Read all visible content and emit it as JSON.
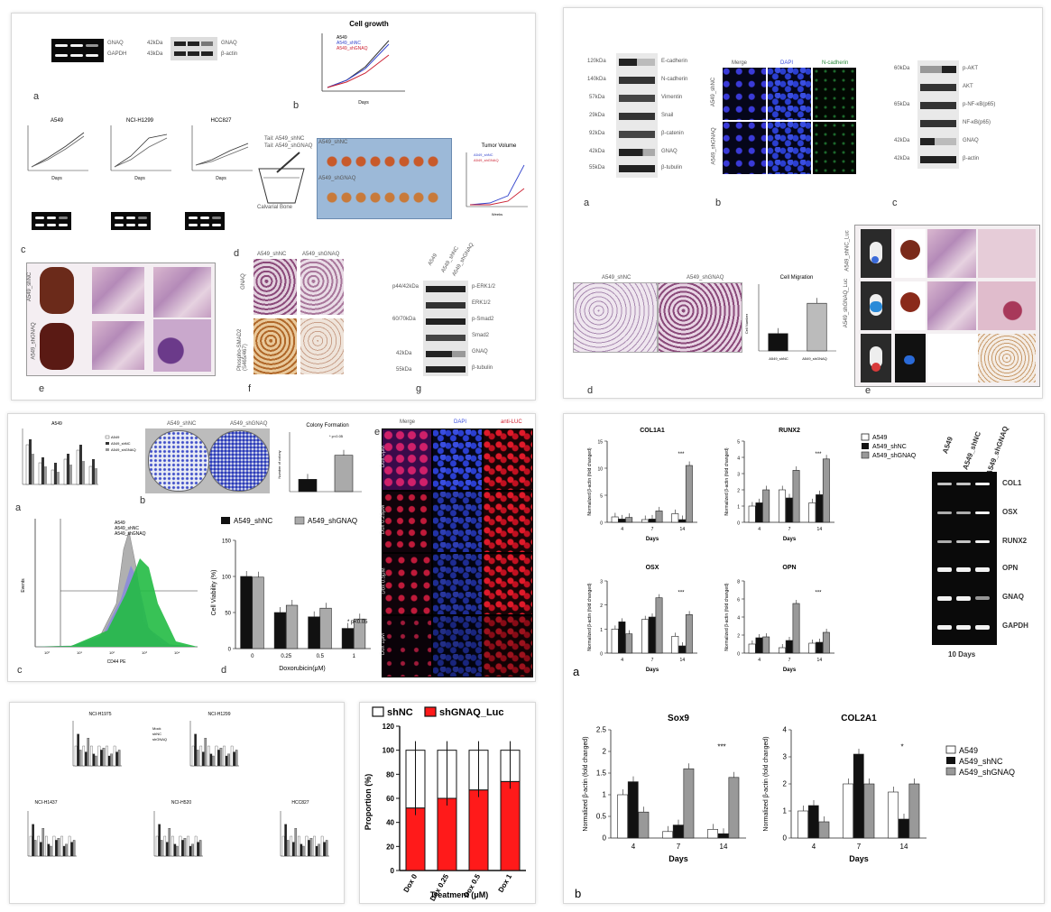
{
  "panels": {
    "p1": {
      "labels": {
        "a": "a",
        "b": "b",
        "c": "c",
        "d": "d",
        "e": "e",
        "f": "f",
        "g": "g"
      },
      "gel_right_labels": [
        "GNAQ",
        "GAPDH"
      ],
      "blot_left_labels": [
        "42kDa",
        "43kDa"
      ],
      "blot_right_labels": [
        "GNAQ",
        "β-actin"
      ],
      "cell_growth_title": "Cell growth",
      "cell_growth_legend": [
        "A549",
        "A549_shNC",
        "A549_shGNAQ"
      ],
      "cell_growth_xlabel": "Days",
      "small_chart_titles": [
        "A549",
        "NCI-H1299",
        "HCC827"
      ],
      "small_chart_xlabel": "Days",
      "injection_labels": [
        "Tail: A549_shNC",
        "Tail: A549_shGNAQ"
      ],
      "bone_label": "Calvarial Bone",
      "tumor_photo_labels": [
        "A549_shNC",
        "A549_shGNAQ"
      ],
      "tumor_volume_title": "Tumor Volume",
      "tumor_volume_legend": [
        "A549_shNC",
        "A549_shGNAQ"
      ],
      "tumor_volume_xlabel": "Weeks",
      "lung_row_labels": [
        "A549_shNC",
        "A549_shGNAQ"
      ],
      "ihc_col_labels": [
        "A549_shNC",
        "A549_shGNAQ"
      ],
      "ihc_row_labels": [
        "GNAQ",
        "Phospho-SMAD2 (S465/467)"
      ],
      "wb_left_labels": [
        "p44/42kDa",
        "",
        "60/70kDa",
        "",
        "42kDa",
        "55kDa"
      ],
      "wb_right_labels": [
        "p-ERK1/2",
        "ERK1/2",
        "p-Smad2",
        "Smad2",
        "GNAQ",
        "β-tubulin"
      ],
      "wb_col_labels": [
        "A549",
        "A549_shNC",
        "A549_shGNAQ"
      ]
    },
    "p2": {
      "labels": {
        "a": "a",
        "b": "b",
        "c": "c",
        "d": "d",
        "e": "e"
      },
      "wb_left_labels": [
        "120kDa",
        "140kDa",
        "57kDa",
        "29kDa",
        "92kDa",
        "42kDa",
        "55kDa"
      ],
      "wb_right_labels": [
        "E-cadherin",
        "N-cadherin",
        "Vimentin",
        "Snail",
        "β-catenin",
        "GNAQ",
        "β-tubulin"
      ],
      "fluor_headers": [
        "Merge",
        "DAPI",
        "N-cadherin"
      ],
      "fluor_row_labels": [
        "A549_shNC",
        "A549_shGNAQ"
      ],
      "wb2_left_labels": [
        "60kDa",
        "",
        "65kDa",
        "",
        "42kDa",
        "42kDa"
      ],
      "wb2_right_labels": [
        "p-AKT",
        "AKT",
        "p-NF-κB(p65)",
        "NF-κB(p65)",
        "GNAQ",
        "β-actin"
      ],
      "transwell_labels": [
        "A549_shNC",
        "A549_shGNAQ"
      ],
      "migration_title": "Cell Migration",
      "migration_ylabel": "Cell Number",
      "mouse_row_labels": [
        "A549_shNC_Luc",
        "A549_shGNAQ_Luc",
        ""
      ]
    },
    "p3": {
      "labels": {
        "a": "a",
        "b": "b",
        "c": "c",
        "d": "d",
        "e": "e"
      },
      "qpcr_title": "A549",
      "qpcr_legend": [
        "A549",
        "A549_shNC",
        "A549_shGNAQ"
      ],
      "colony_labels": [
        "A549_shNC",
        "A549_shGNAQ"
      ],
      "colony_title": "Colony Formation",
      "colony_ylabel": "Number of colony",
      "colony_sig": "* p<0.05",
      "flow_legend": [
        "A549",
        "A549_shNC",
        "A549_shGNAQ"
      ],
      "flow_xlabel": "CD44 PE",
      "flow_ylabel": "Events",
      "flow_xticks": [
        "10⁰",
        "10¹",
        "10²",
        "10³",
        "10⁴"
      ],
      "fluor_headers": [
        "Merge",
        "DAPI",
        "anti-LUC"
      ],
      "fluor_row_labels": [
        "Dox 0μM",
        "Dox 0.25μM",
        "Dox 0.5μM",
        "Dox 1μM"
      ]
    },
    "p4": {
      "small_titles": [
        "NCI-H1975",
        "NCI-H1299",
        "NCI-H1437",
        "NCI-H520",
        "HCC827"
      ],
      "legend": [
        "Mock",
        "shNC",
        "shGNAQ"
      ]
    },
    "p6": {
      "labels": {
        "a": "a",
        "b": "b"
      },
      "gel_headers": [
        "A549",
        "A549_shNC",
        "A549_shGNAQ"
      ],
      "gel_rows": [
        "COL1",
        "OSX",
        "RUNX2",
        "OPN",
        "GNAQ",
        "GAPDH"
      ],
      "gel_footer": "10 Days",
      "legend_a": [
        "A549",
        "A549_shNC",
        "A549_shGNAQ"
      ],
      "legend_b": [
        "A549",
        "A549_shNC",
        "A549_shGNAQ"
      ]
    }
  },
  "chart_data": [
    {
      "type": "bar",
      "id": "cell-viability",
      "title": "",
      "categories": [
        "0",
        "0.25",
        "0.5",
        "1"
      ],
      "series": [
        {
          "name": "A549_shNC",
          "values": [
            100,
            50,
            44,
            28
          ]
        },
        {
          "name": "A549_shGNAQ",
          "values": [
            99,
            60,
            56,
            41
          ]
        }
      ],
      "xlabel": "Doxorubicin(μM)",
      "ylabel": "Cell Viability (%)",
      "ylim": [
        0,
        150
      ],
      "yticks": [
        0,
        50,
        100,
        150
      ],
      "annotation": "* p<0.05"
    },
    {
      "type": "bar",
      "id": "colony",
      "title": "Colony Formation",
      "categories": [
        "A549_shNC",
        "A549_shGNAQ"
      ],
      "values": [
        22,
        65
      ],
      "ylim": [
        0,
        100
      ]
    },
    {
      "type": "bar",
      "id": "migration",
      "title": "Cell Migration",
      "categories": [
        "A549_shNC",
        "A549_shGNAQ"
      ],
      "values": [
        40,
        110
      ],
      "ylim": [
        0,
        150
      ]
    },
    {
      "type": "bar",
      "id": "proportion",
      "title": "",
      "stacked": true,
      "categories": [
        "Dox 0",
        "Dox 0.25",
        "Dox 0.5",
        "Dox 1"
      ],
      "series": [
        {
          "name": "shNC",
          "values": [
            48,
            40,
            33,
            26
          ],
          "color": "#ffffff"
        },
        {
          "name": "shGNAQ_Luc",
          "values": [
            52,
            60,
            67,
            74
          ],
          "color": "#ff1a1a"
        }
      ],
      "xlabel": "Treatment (μM)",
      "ylabel": "Proportion (%)",
      "ylim": [
        0,
        120
      ],
      "yticks": [
        0,
        20,
        40,
        60,
        80,
        100,
        120
      ]
    },
    {
      "type": "bar",
      "id": "col1a1",
      "title": "COL1A1",
      "categories": [
        "4",
        "7",
        "14"
      ],
      "series": [
        {
          "name": "A549",
          "values": [
            1.0,
            0.5,
            1.6
          ]
        },
        {
          "name": "A549_shNC",
          "values": [
            0.6,
            0.6,
            0.5
          ]
        },
        {
          "name": "A549_shGNAQ",
          "values": [
            0.9,
            2.1,
            10.5
          ]
        }
      ],
      "xlabel": "Days",
      "ylabel": "Normalized β-actin (fold changed)",
      "ylim": [
        0,
        15
      ],
      "yticks": [
        0,
        5,
        10,
        15
      ],
      "annotation": "***"
    },
    {
      "type": "bar",
      "id": "runx2",
      "title": "RUNX2",
      "categories": [
        "4",
        "7",
        "14"
      ],
      "series": [
        {
          "name": "A549",
          "values": [
            1.0,
            2.0,
            1.2
          ]
        },
        {
          "name": "A549_shNC",
          "values": [
            1.2,
            1.5,
            1.7
          ]
        },
        {
          "name": "A549_shGNAQ",
          "values": [
            2.0,
            3.2,
            3.9
          ]
        }
      ],
      "xlabel": "Days",
      "ylabel": "Normalized β-actin (fold changed)",
      "ylim": [
        0,
        5
      ],
      "yticks": [
        0,
        1,
        2,
        3,
        4,
        5
      ],
      "annotation": "***"
    },
    {
      "type": "bar",
      "id": "osx",
      "title": "OSX",
      "categories": [
        "4",
        "7",
        "14"
      ],
      "series": [
        {
          "name": "A549",
          "values": [
            1.0,
            1.4,
            0.7
          ]
        },
        {
          "name": "A549_shNC",
          "values": [
            1.3,
            1.5,
            0.3
          ]
        },
        {
          "name": "A549_shGNAQ",
          "values": [
            0.8,
            2.3,
            1.6
          ]
        }
      ],
      "xlabel": "Days",
      "ylabel": "Normalized β-actin (fold changed)",
      "ylim": [
        0,
        3
      ],
      "yticks": [
        0,
        1,
        2,
        3
      ],
      "annotation": "***"
    },
    {
      "type": "bar",
      "id": "opn",
      "title": "OPN",
      "categories": [
        "4",
        "7",
        "14"
      ],
      "series": [
        {
          "name": "A549",
          "values": [
            1.0,
            0.6,
            1.1
          ]
        },
        {
          "name": "A549_shNC",
          "values": [
            1.7,
            1.4,
            1.2
          ]
        },
        {
          "name": "A549_shGNAQ",
          "values": [
            1.8,
            5.5,
            2.3
          ]
        }
      ],
      "xlabel": "Days",
      "ylabel": "Normalized β-actin (fold changed)",
      "ylim": [
        0,
        8
      ],
      "yticks": [
        0,
        2,
        4,
        6,
        8
      ],
      "annotation": "***"
    },
    {
      "type": "bar",
      "id": "sox9",
      "title": "Sox9",
      "categories": [
        "4",
        "7",
        "14"
      ],
      "series": [
        {
          "name": "A549",
          "values": [
            1.0,
            0.15,
            0.2
          ]
        },
        {
          "name": "A549_shNC",
          "values": [
            1.3,
            0.3,
            0.1
          ]
        },
        {
          "name": "A549_shGNAQ",
          "values": [
            0.6,
            1.6,
            1.4
          ]
        }
      ],
      "xlabel": "Days",
      "ylabel": "Normalized β-actin (fold changed)",
      "ylim": [
        0,
        2.5
      ],
      "yticks": [
        0.0,
        0.5,
        1.0,
        1.5,
        2.0,
        2.5
      ],
      "annotation": "***"
    },
    {
      "type": "bar",
      "id": "col2a1",
      "title": "COL2A1",
      "categories": [
        "4",
        "7",
        "14"
      ],
      "series": [
        {
          "name": "A549",
          "values": [
            1.0,
            2.0,
            1.7
          ]
        },
        {
          "name": "A549_shNC",
          "values": [
            1.2,
            3.1,
            0.7
          ]
        },
        {
          "name": "A549_shGNAQ",
          "values": [
            0.6,
            2.0,
            2.0
          ]
        }
      ],
      "xlabel": "Days",
      "ylabel": "Normalized β-actin (fold changed)",
      "ylim": [
        0,
        4
      ],
      "yticks": [
        0,
        1,
        2,
        3,
        4
      ],
      "annotation": "*"
    }
  ]
}
